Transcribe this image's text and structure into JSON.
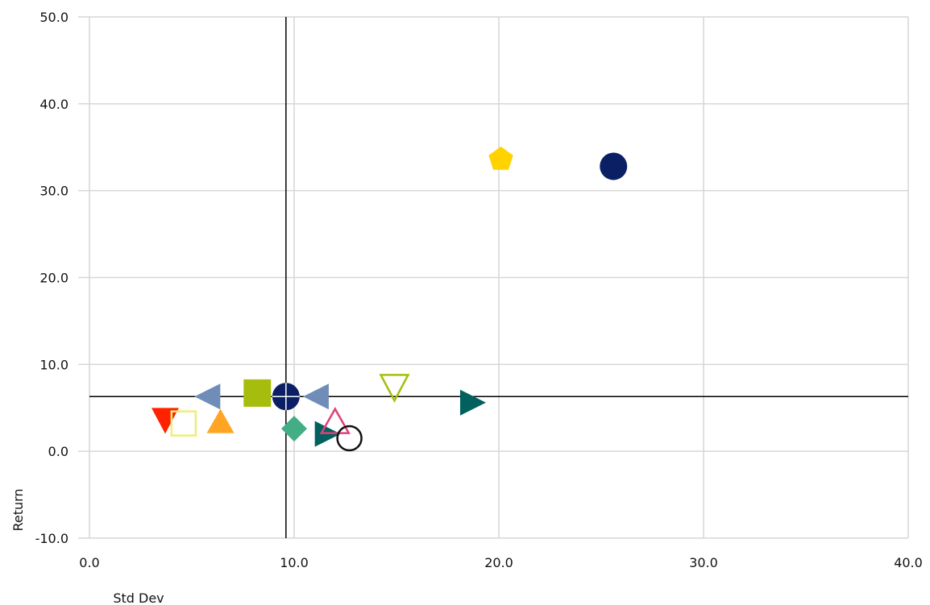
{
  "chart_data": {
    "type": "scatter",
    "title": "",
    "xlabel": "Std Dev",
    "ylabel": "Return",
    "xlim": [
      0,
      40
    ],
    "ylim": [
      -10,
      50
    ],
    "xticks": [
      0,
      10,
      20,
      30,
      40
    ],
    "yticks": [
      -10,
      50,
      40,
      30,
      20,
      10,
      0
    ],
    "xtick_labels": [
      "0.0",
      "10.0",
      "20.0",
      "30.0",
      "40.0"
    ],
    "ytick_labels": [
      "-10.0",
      "50.0",
      "40.0",
      "30.0",
      "20.0",
      "10.0",
      "0.0"
    ],
    "grid": true,
    "reference_lines": {
      "x": 9.6,
      "y": 6.3
    },
    "points": [
      {
        "x": 20.1,
        "y": 33.6,
        "marker": "pentagon",
        "color": "#FFD200",
        "filled": true
      },
      {
        "x": 25.6,
        "y": 32.8,
        "marker": "circle",
        "color": "#0A1F64",
        "filled": true
      },
      {
        "x": 3.7,
        "y": 3.6,
        "marker": "triangle-down",
        "color": "#FF2200",
        "filled": true
      },
      {
        "x": 4.6,
        "y": 3.2,
        "marker": "square",
        "color": "#EEEE77",
        "filled": false
      },
      {
        "x": 5.8,
        "y": 6.3,
        "marker": "triangle-left",
        "color": "#6F8DB8",
        "filled": true
      },
      {
        "x": 6.4,
        "y": 3.3,
        "marker": "triangle-up",
        "color": "#FFA423",
        "filled": true
      },
      {
        "x": 8.2,
        "y": 6.7,
        "marker": "square",
        "color": "#A6BD0E",
        "filled": true
      },
      {
        "x": 9.6,
        "y": 6.3,
        "marker": "circle-cross",
        "color": "#0A1F64",
        "filled": true
      },
      {
        "x": 10.0,
        "y": 2.6,
        "marker": "diamond",
        "color": "#43AE85",
        "filled": true
      },
      {
        "x": 11.1,
        "y": 6.3,
        "marker": "triangle-left",
        "color": "#6F8DB8",
        "filled": true
      },
      {
        "x": 11.6,
        "y": 2.0,
        "marker": "triangle-right",
        "color": "#02605E",
        "filled": true
      },
      {
        "x": 12.0,
        "y": 3.3,
        "marker": "triangle-up",
        "color": "#E0407C",
        "filled": false
      },
      {
        "x": 12.7,
        "y": 1.5,
        "marker": "circle",
        "color": "#111111",
        "filled": false
      },
      {
        "x": 14.9,
        "y": 7.4,
        "marker": "triangle-down",
        "color": "#A6BD0E",
        "filled": false
      },
      {
        "x": 18.7,
        "y": 5.6,
        "marker": "triangle-right",
        "color": "#02605E",
        "filled": true
      }
    ]
  }
}
